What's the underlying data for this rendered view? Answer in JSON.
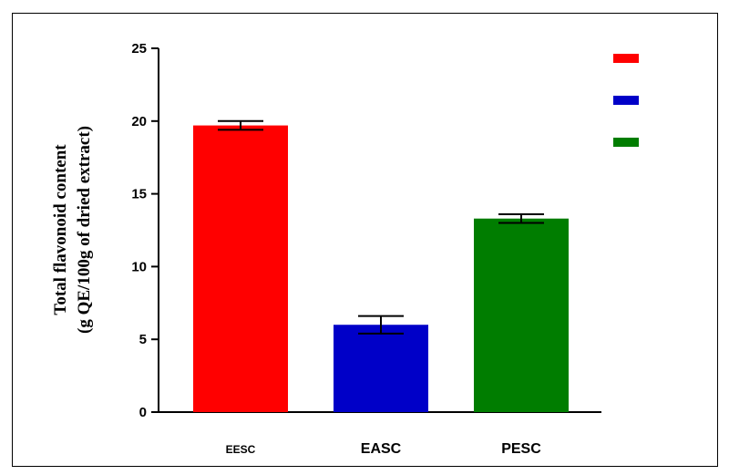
{
  "chart_data": {
    "type": "bar",
    "categories": [
      "EESC",
      "EASC",
      "PESC"
    ],
    "values": [
      19.7,
      6.0,
      13.3
    ],
    "errors": [
      0.3,
      0.6,
      0.3
    ],
    "colors": [
      "#ff0000",
      "#0000c8",
      "#007d00"
    ],
    "ylabel_line1": "Total flavonoid content",
    "ylabel_line2": "(g QE/100g of dried extract)",
    "ylim": [
      0,
      25
    ],
    "yticks": [
      "0",
      "5",
      "10",
      "15",
      "20",
      "25"
    ],
    "legend": {
      "placement": "top-right",
      "entries": [
        {
          "color": "#ff0000",
          "label": ""
        },
        {
          "color": "#0000c8",
          "label": ""
        },
        {
          "color": "#007d00",
          "label": ""
        }
      ]
    },
    "grid": false
  }
}
